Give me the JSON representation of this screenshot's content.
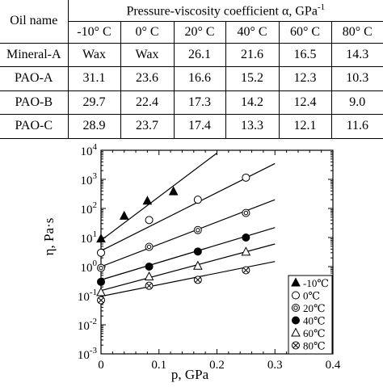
{
  "table": {
    "row_header": "Oil name",
    "group_header_main": "Pressure-viscosity coefficient α, GPa",
    "group_header_sup": "-1",
    "temps": [
      "-10° C",
      "0° C",
      "20° C",
      "40° C",
      "60° C",
      "80° C"
    ],
    "rows": [
      {
        "name": "Mineral-A",
        "values": [
          "Wax",
          "Wax",
          "26.1",
          "21.6",
          "16.5",
          "14.3"
        ]
      },
      {
        "name": "PAO-A",
        "values": [
          "31.1",
          "23.6",
          "16.6",
          "15.2",
          "12.3",
          "10.3"
        ]
      },
      {
        "name": "PAO-B",
        "values": [
          "29.7",
          "22.4",
          "17.3",
          "14.2",
          "12.4",
          "9.0"
        ]
      },
      {
        "name": "PAO-C",
        "values": [
          "28.9",
          "23.7",
          "17.4",
          "13.3",
          "12.1",
          "11.6"
        ]
      }
    ]
  },
  "chart_data": {
    "type": "scatter",
    "title": "",
    "xlabel": "p, GPa",
    "ylabel": "η,  Pa·s",
    "xlim": [
      0,
      0.4
    ],
    "ylim_log10": [
      -3,
      4
    ],
    "yscale": "log",
    "x_ticks": [
      "0",
      "0.1",
      "0.2",
      "0.3",
      "0.4"
    ],
    "y_ticks": [
      {
        "base": "10",
        "exp": "-3"
      },
      {
        "base": "10",
        "exp": "-2"
      },
      {
        "base": "10",
        "exp": "-1"
      },
      {
        "base": "10",
        "exp": "0"
      },
      {
        "base": "10",
        "exp": "1"
      },
      {
        "base": "10",
        "exp": "2"
      },
      {
        "base": "10",
        "exp": "3"
      },
      {
        "base": "10",
        "exp": "4"
      }
    ],
    "legend_position": "bottom-right",
    "series": [
      {
        "name": "-10℃",
        "marker": "triangle-filled",
        "x": [
          0,
          0.04,
          0.08,
          0.125
        ],
        "y": [
          9,
          55,
          180,
          380
        ],
        "fit": [
          [
            0,
            8
          ],
          [
            0.2,
            8000
          ]
        ]
      },
      {
        "name": "0℃",
        "marker": "circle-open",
        "x": [
          0,
          0.083,
          0.167,
          0.25
        ],
        "y": [
          3,
          40,
          200,
          1150
        ],
        "fit": [
          [
            0,
            3.5
          ],
          [
            0.3,
            3500
          ]
        ]
      },
      {
        "name": "20℃",
        "marker": "circle-ring",
        "x": [
          0,
          0.083,
          0.167,
          0.25
        ],
        "y": [
          0.9,
          4.8,
          18,
          70
        ],
        "fit": [
          [
            0,
            1
          ],
          [
            0.3,
            200
          ]
        ]
      },
      {
        "name": "40℃",
        "marker": "circle-filled",
        "x": [
          0,
          0.083,
          0.167,
          0.25
        ],
        "y": [
          0.3,
          1,
          3.3,
          10
        ],
        "fit": [
          [
            0,
            0.35
          ],
          [
            0.3,
            22
          ]
        ]
      },
      {
        "name": "60℃",
        "marker": "triangle-open",
        "x": [
          0,
          0.083,
          0.167,
          0.25
        ],
        "y": [
          0.13,
          0.45,
          1.05,
          3.2
        ],
        "fit": [
          [
            0,
            0.15
          ],
          [
            0.3,
            6
          ]
        ]
      },
      {
        "name": "80℃",
        "marker": "circle-cross",
        "x": [
          0,
          0.083,
          0.167,
          0.25
        ],
        "y": [
          0.07,
          0.22,
          0.35,
          0.75
        ],
        "fit": [
          [
            0,
            0.095
          ],
          [
            0.3,
            1.5
          ]
        ]
      }
    ]
  }
}
